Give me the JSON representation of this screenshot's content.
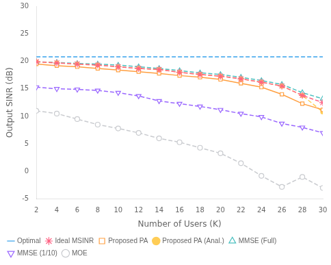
{
  "chart_data": {
    "type": "line",
    "xlabel": "Number of Users (K)",
    "ylabel": "Output SINR (dB)",
    "x": [
      2,
      4,
      6,
      8,
      10,
      12,
      14,
      16,
      18,
      20,
      22,
      24,
      26,
      28,
      30
    ],
    "series": [
      {
        "name": "Optimal",
        "marker": "none",
        "line_style": "dashed",
        "values": [
          20.8,
          20.8,
          20.8,
          20.8,
          20.8,
          20.8,
          20.8,
          20.8,
          20.8,
          20.8,
          20.8,
          20.8,
          20.8,
          20.8,
          20.8
        ]
      },
      {
        "name": "Ideal MSINR",
        "marker": "star",
        "line_style": "dashed",
        "values": [
          19.9,
          19.7,
          19.5,
          19.3,
          19.0,
          18.7,
          18.5,
          18.0,
          17.6,
          17.3,
          16.8,
          16.2,
          15.5,
          13.8,
          12.5
        ]
      },
      {
        "name": "Proposed PA",
        "marker": "square",
        "line_style": "solid",
        "values": [
          19.5,
          19.2,
          19.0,
          18.7,
          18.4,
          18.1,
          17.8,
          17.4,
          17.1,
          16.7,
          16.0,
          15.3,
          14.0,
          12.3,
          11.2
        ]
      },
      {
        "name": "Proposed PA (Anal.)",
        "marker": "dot",
        "line_style": "dashed",
        "values": [
          19.9,
          19.7,
          19.5,
          19.3,
          19.0,
          18.7,
          18.5,
          18.0,
          17.6,
          17.3,
          16.8,
          16.2,
          15.5,
          13.8,
          10.8
        ]
      },
      {
        "name": "MMSE (Full)",
        "marker": "triangle_up",
        "line_style": "dashed",
        "values": [
          19.9,
          19.8,
          19.6,
          19.5,
          19.3,
          19.0,
          18.7,
          18.3,
          17.9,
          17.6,
          17.1,
          16.5,
          15.8,
          14.3,
          13.2
        ]
      },
      {
        "name": "MMSE (1/10)",
        "marker": "triangle_down",
        "line_style": "dashed",
        "values": [
          15.3,
          15.0,
          14.9,
          14.7,
          14.3,
          13.7,
          12.8,
          12.3,
          11.8,
          11.2,
          10.5,
          9.9,
          8.7,
          8.0,
          7.0
        ]
      },
      {
        "name": "MOE",
        "marker": "circle",
        "line_style": "dashed",
        "values": [
          11.0,
          10.5,
          9.5,
          8.5,
          7.8,
          7.0,
          6.0,
          5.3,
          4.3,
          3.3,
          1.5,
          -0.8,
          -2.8,
          -1.0,
          -3.0
        ]
      }
    ],
    "xlim": [
      2,
      30
    ],
    "ylim": [
      -5,
      30
    ],
    "xticks": [
      2,
      4,
      6,
      8,
      10,
      12,
      14,
      16,
      18,
      20,
      22,
      24,
      26,
      28,
      30
    ],
    "yticks": [
      -5,
      0,
      5,
      10,
      15,
      20,
      25,
      30
    ],
    "grid": false,
    "legend": "lower left"
  }
}
